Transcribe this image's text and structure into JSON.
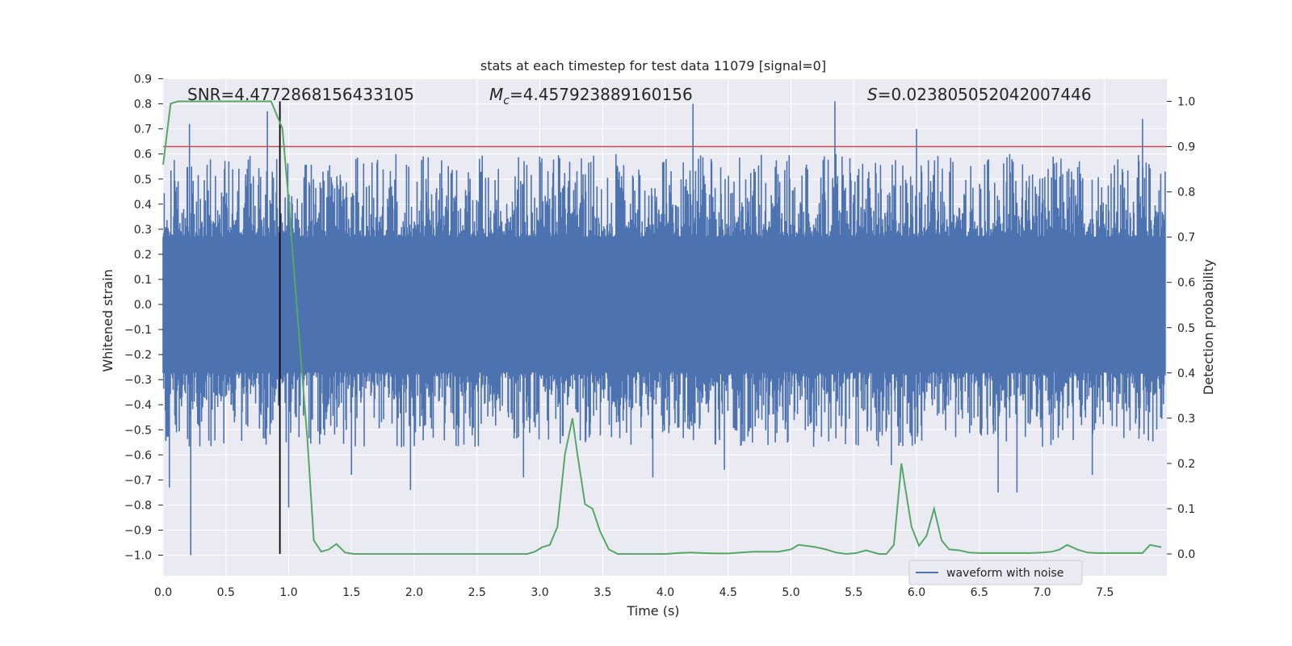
{
  "chart_data": {
    "type": "line",
    "title": "stats at each timestep for test data 11079 [signal=0]",
    "xlabel": "Time (s)",
    "ylabel": "Whitened strain",
    "y2label": "Detection probability",
    "xlim": [
      0.0,
      8.0
    ],
    "ylim": [
      -1.09,
      0.9
    ],
    "y2lim": [
      -0.05,
      1.045
    ],
    "xticks": [
      "0.0",
      "0.5",
      "1.0",
      "1.5",
      "2.0",
      "2.5",
      "3.0",
      "3.5",
      "4.0",
      "4.5",
      "5.0",
      "5.5",
      "6.0",
      "6.5",
      "7.0",
      "7.5"
    ],
    "yticks": [
      "0.9",
      "0.8",
      "0.7",
      "0.6",
      "0.5",
      "0.4",
      "0.3",
      "0.2",
      "0.1",
      "0.0",
      "−0.1",
      "−0.2",
      "−0.3",
      "−0.4",
      "−0.5",
      "−0.6",
      "−0.7",
      "−0.8",
      "−0.9",
      "−1.0"
    ],
    "y2ticks": [
      "1.0",
      "0.9",
      "0.8",
      "0.7",
      "0.6",
      "0.5",
      "0.4",
      "0.3",
      "0.2",
      "0.1",
      "0.0"
    ],
    "annotations": {
      "snr": "SNR=4.4772868156433105",
      "mc_symbol": "M",
      "mc_sub": "c",
      "mc_value": "=4.457923889160156",
      "s_symbol": "S",
      "s_value": "=0.023805052042007446"
    },
    "legend": {
      "label": "waveform with noise",
      "position": "lower-right"
    },
    "threshold": {
      "value": 0.9,
      "axis": "right",
      "color": "#c44e52"
    },
    "event_marker": {
      "x": 0.93,
      "color": "#000000"
    },
    "noise_series": {
      "name": "waveform with noise",
      "color": "#4c72b0",
      "n_samples": 1800,
      "core_amplitude": 0.27,
      "spikes": [
        {
          "x": 0.22,
          "y": -1.0
        },
        {
          "x": 0.21,
          "y": 0.72
        },
        {
          "x": 0.83,
          "y": 0.77
        },
        {
          "x": 1.0,
          "y": -0.81
        },
        {
          "x": 4.22,
          "y": 0.8
        },
        {
          "x": 5.35,
          "y": 0.81
        },
        {
          "x": 6.0,
          "y": 0.7
        },
        {
          "x": 7.8,
          "y": 0.74
        },
        {
          "x": 0.05,
          "y": -0.73
        },
        {
          "x": 1.5,
          "y": -0.68
        },
        {
          "x": 1.97,
          "y": -0.74
        },
        {
          "x": 2.87,
          "y": -0.69
        },
        {
          "x": 3.9,
          "y": -0.69
        },
        {
          "x": 4.47,
          "y": -0.66
        },
        {
          "x": 6.65,
          "y": -0.75
        },
        {
          "x": 6.8,
          "y": -0.75
        },
        {
          "x": 3.4,
          "y": -0.52
        },
        {
          "x": 5.8,
          "y": -0.64
        },
        {
          "x": 7.4,
          "y": -0.68
        }
      ]
    },
    "probability_series": {
      "name": "detection probability",
      "color": "#55a868",
      "x": [
        0.0,
        0.06,
        0.12,
        0.2,
        0.3,
        0.4,
        0.5,
        0.6,
        0.7,
        0.8,
        0.86,
        0.95,
        1.0,
        1.05,
        1.1,
        1.15,
        1.2,
        1.26,
        1.32,
        1.38,
        1.45,
        1.52,
        1.6,
        1.7,
        1.8,
        1.9,
        2.0,
        2.1,
        2.2,
        2.3,
        2.4,
        2.5,
        2.6,
        2.7,
        2.8,
        2.9,
        2.96,
        3.02,
        3.08,
        3.14,
        3.2,
        3.26,
        3.3,
        3.36,
        3.42,
        3.48,
        3.55,
        3.62,
        3.7,
        3.8,
        3.9,
        4.0,
        4.1,
        4.2,
        4.3,
        4.4,
        4.5,
        4.6,
        4.7,
        4.8,
        4.9,
        5.0,
        5.06,
        5.12,
        5.2,
        5.28,
        5.36,
        5.44,
        5.52,
        5.6,
        5.7,
        5.76,
        5.82,
        5.88,
        5.96,
        6.02,
        6.08,
        6.14,
        6.2,
        6.26,
        6.34,
        6.42,
        6.5,
        6.6,
        6.7,
        6.8,
        6.9,
        7.0,
        7.08,
        7.14,
        7.2,
        7.28,
        7.36,
        7.44,
        7.52,
        7.6,
        7.7,
        7.8,
        7.86,
        7.95
      ],
      "y": [
        0.86,
        0.995,
        1.0,
        1.0,
        1.0,
        1.0,
        1.0,
        1.0,
        1.0,
        1.0,
        1.0,
        0.94,
        0.78,
        0.6,
        0.42,
        0.25,
        0.03,
        0.005,
        0.01,
        0.022,
        0.003,
        0.0,
        0.0,
        0.0,
        0.0,
        0.0,
        0.0,
        0.0,
        0.0,
        0.0,
        0.0,
        0.0,
        0.0,
        0.0,
        0.0,
        0.0,
        0.005,
        0.015,
        0.02,
        0.06,
        0.22,
        0.3,
        0.22,
        0.11,
        0.1,
        0.05,
        0.01,
        0.0,
        0.0,
        0.0,
        0.0,
        0.0,
        0.002,
        0.003,
        0.002,
        0.001,
        0.001,
        0.003,
        0.005,
        0.005,
        0.005,
        0.01,
        0.02,
        0.018,
        0.015,
        0.01,
        0.003,
        0.0,
        0.002,
        0.008,
        0.0,
        0.0,
        0.02,
        0.2,
        0.06,
        0.018,
        0.04,
        0.1,
        0.03,
        0.01,
        0.008,
        0.003,
        0.002,
        0.002,
        0.002,
        0.002,
        0.002,
        0.003,
        0.005,
        0.01,
        0.02,
        0.01,
        0.003,
        0.002,
        0.002,
        0.002,
        0.002,
        0.002,
        0.02,
        0.015
      ]
    }
  }
}
